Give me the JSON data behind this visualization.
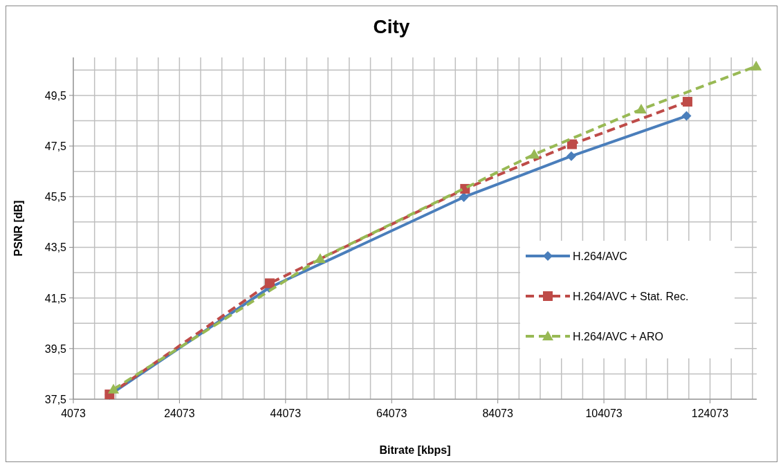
{
  "chart_data": {
    "type": "line",
    "title": "City",
    "xlabel": "Bitrate [kbps]",
    "ylabel": "PSNR [dB]",
    "xlim": [
      4073,
      132873
    ],
    "ylim": [
      37.5,
      51
    ],
    "xticks": [
      4073,
      {
        "value": 8073,
        "label": null
      },
      {
        "value": 12073,
        "label": null
      },
      {
        "value": 16073,
        "label": null
      },
      {
        "value": 20073,
        "label": null
      },
      24073,
      {
        "value": 28073,
        "label": null
      },
      {
        "value": 32073,
        "label": null
      },
      {
        "value": 36073,
        "label": null
      },
      {
        "value": 40073,
        "label": null
      },
      44073,
      {
        "value": 48073,
        "label": null
      },
      {
        "value": 52073,
        "label": null
      },
      {
        "value": 56073,
        "label": null
      },
      {
        "value": 60073,
        "label": null
      },
      64073,
      {
        "value": 68073,
        "label": null
      },
      {
        "value": 72073,
        "label": null
      },
      {
        "value": 76073,
        "label": null
      },
      {
        "value": 80073,
        "label": null
      },
      84073,
      {
        "value": 88073,
        "label": null
      },
      {
        "value": 92073,
        "label": null
      },
      {
        "value": 96073,
        "label": null
      },
      {
        "value": 100073,
        "label": null
      },
      104073,
      {
        "value": 108073,
        "label": null
      },
      {
        "value": 112073,
        "label": null
      },
      {
        "value": 116073,
        "label": null
      },
      {
        "value": 120073,
        "label": null
      },
      124073,
      {
        "value": 128073,
        "label": null
      },
      {
        "value": 132073,
        "label": null
      }
    ],
    "yticks": [
      {
        "value": 37.5,
        "label": "37,5"
      },
      {
        "value": 38.5,
        "label": null
      },
      {
        "value": 39.5,
        "label": "39,5"
      },
      {
        "value": 40.5,
        "label": null
      },
      {
        "value": 41.5,
        "label": "41,5"
      },
      {
        "value": 42.5,
        "label": null
      },
      {
        "value": 43.5,
        "label": "43,5"
      },
      {
        "value": 44.5,
        "label": null
      },
      {
        "value": 45.5,
        "label": "45,5"
      },
      {
        "value": 46.5,
        "label": null
      },
      {
        "value": 47.5,
        "label": "47,5"
      },
      {
        "value": 48.5,
        "label": null
      },
      {
        "value": 49.5,
        "label": "49,5"
      },
      {
        "value": 50.5,
        "label": null
      }
    ],
    "grid": true,
    "legend": "right",
    "series": [
      {
        "name": "H.264/AVC",
        "color": "#4a7ebb",
        "marker": "diamond",
        "line_style": "solid",
        "x": [
          10900,
          40970,
          77670,
          97930,
          119640
        ],
        "values": [
          37.67,
          41.9,
          45.48,
          47.1,
          48.69
        ]
      },
      {
        "name": "H.264/AVC + Stat. Rec.",
        "color": "#be4b48",
        "marker": "square",
        "line_style": "dashed",
        "x": [
          10900,
          41100,
          77900,
          98060,
          119830
        ],
        "values": [
          37.69,
          42.08,
          45.81,
          47.57,
          49.25
        ]
      },
      {
        "name": "H.264/AVC + ARO",
        "color": "#98b954",
        "marker": "triangle",
        "line_style": "dashed",
        "x": [
          11640,
          50600,
          90930,
          111100,
          132770
        ],
        "values": [
          37.89,
          43.05,
          47.17,
          48.95,
          50.65
        ]
      }
    ]
  }
}
